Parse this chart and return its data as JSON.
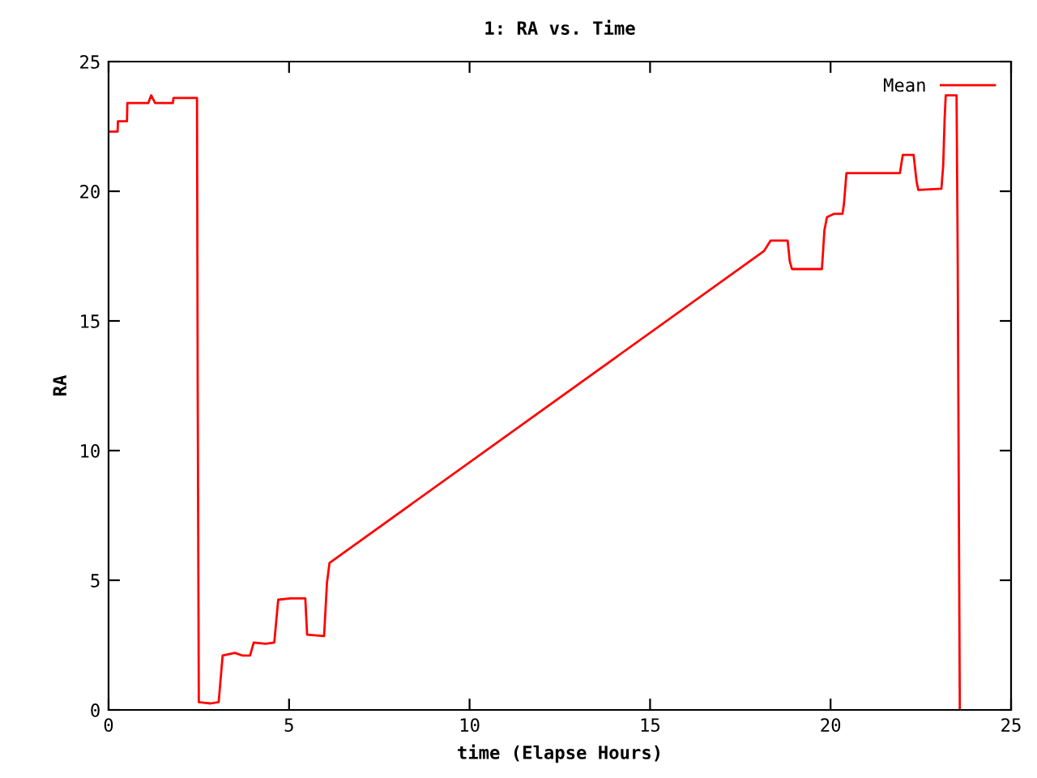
{
  "chart_data": {
    "type": "line",
    "title": "1: RA vs. Time",
    "xlabel": "time (Elapse Hours)",
    "ylabel": "RA",
    "xlim": [
      0,
      25
    ],
    "ylim": [
      0,
      25
    ],
    "xticks": [
      0,
      5,
      10,
      15,
      20,
      25
    ],
    "yticks": [
      0,
      5,
      10,
      15,
      20,
      25
    ],
    "grid": false,
    "legend": "top right",
    "marker": "none",
    "line_style": "solid",
    "series": [
      {
        "name": "Mean",
        "color": "#ff0000",
        "x": [
          0,
          0.25,
          0.26,
          0.51,
          0.52,
          1.1,
          1.18,
          1.29,
          1.78,
          1.8,
          2.45,
          2.47,
          2.5,
          2.83,
          3.05,
          3.16,
          3.5,
          3.7,
          3.92,
          4.02,
          4.35,
          4.59,
          4.7,
          5.04,
          5.45,
          5.5,
          5.97,
          6.05,
          6.12,
          18.16,
          18.34,
          18.81,
          18.87,
          18.93,
          19.76,
          19.83,
          19.9,
          20.1,
          20.33,
          20.37,
          20.44,
          21.92,
          22.0,
          22.3,
          22.38,
          22.43,
          23.07,
          23.12,
          23.16,
          23.19,
          23.49,
          23.52,
          23.56,
          23.58
        ],
        "values": [
          22.3,
          22.3,
          22.7,
          22.7,
          23.4,
          23.4,
          23.7,
          23.4,
          23.4,
          23.6,
          23.6,
          12.0,
          0.3,
          0.25,
          0.3,
          2.1,
          2.2,
          2.1,
          2.1,
          2.6,
          2.55,
          2.6,
          4.25,
          4.3,
          4.3,
          2.9,
          2.85,
          4.9,
          5.67,
          17.7,
          18.1,
          18.1,
          17.3,
          17.0,
          17.0,
          18.5,
          19.0,
          19.13,
          19.13,
          19.5,
          20.7,
          20.7,
          21.4,
          21.4,
          20.4,
          20.05,
          20.1,
          21.0,
          22.8,
          23.7,
          23.7,
          17.8,
          5.9,
          0
        ]
      }
    ]
  }
}
